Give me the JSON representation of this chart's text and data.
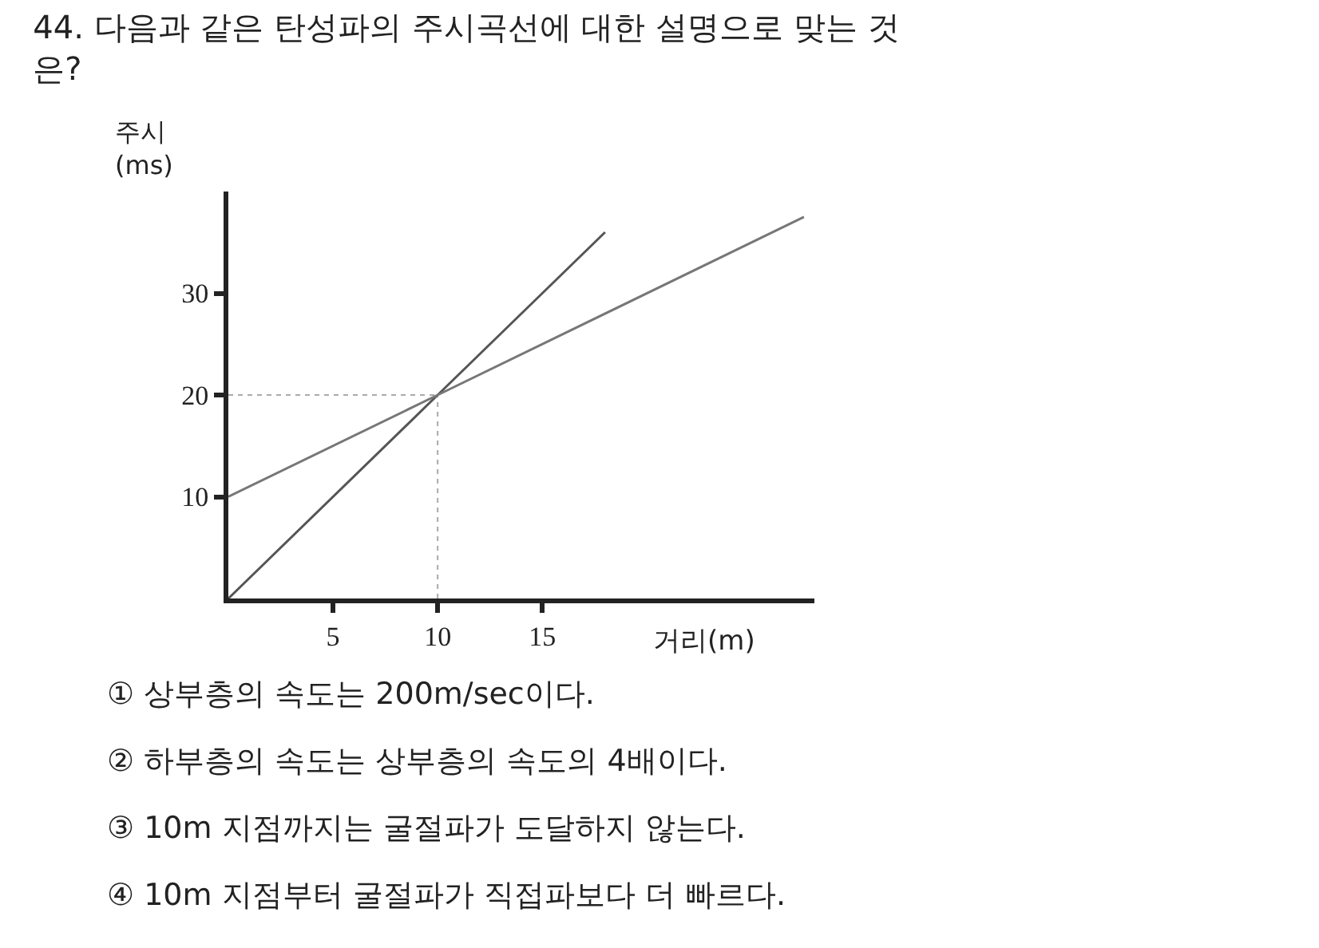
{
  "chart_data": {
    "type": "line",
    "title": "44. 다음과 같은 탄성파의 주시곡선에 대한 설명으로 맞는 것 은?",
    "xlabel": "거리(m)",
    "ylabel": "주시 (ms)",
    "series": [
      {
        "color": "#555555",
        "x": [
          0,
          10,
          18
        ],
        "values": [
          0,
          20,
          36
        ]
      },
      {
        "color": "#777777",
        "x": [
          0,
          10,
          27.5
        ],
        "values": [
          10,
          20,
          37.5
        ]
      }
    ],
    "ref_lines": [
      {
        "axis": "x",
        "value": 10,
        "color": "#aaaaaa",
        "line_style": "dotted"
      },
      {
        "axis": "y",
        "value": 20,
        "color": "#aaaaaa",
        "line_style": "dotted"
      }
    ],
    "xlim": [
      0,
      28
    ],
    "xticks": [
      5,
      10,
      15
    ],
    "ylim": [
      0,
      40
    ],
    "yticks": [
      10,
      20,
      30
    ],
    "grid": false,
    "marker": "none",
    "line_style": "solid",
    "annotations": [
      "① 상부층의 속도는 200m/sec이다.",
      "② 하부층의 속도는 상부층의 속도의 4배이다.",
      "③ 10m 지점까지는 굴절파가 도달하지 않는다.",
      "④ 10m 지점부터 굴절파가 직접파보다 더 빠르다."
    ]
  }
}
